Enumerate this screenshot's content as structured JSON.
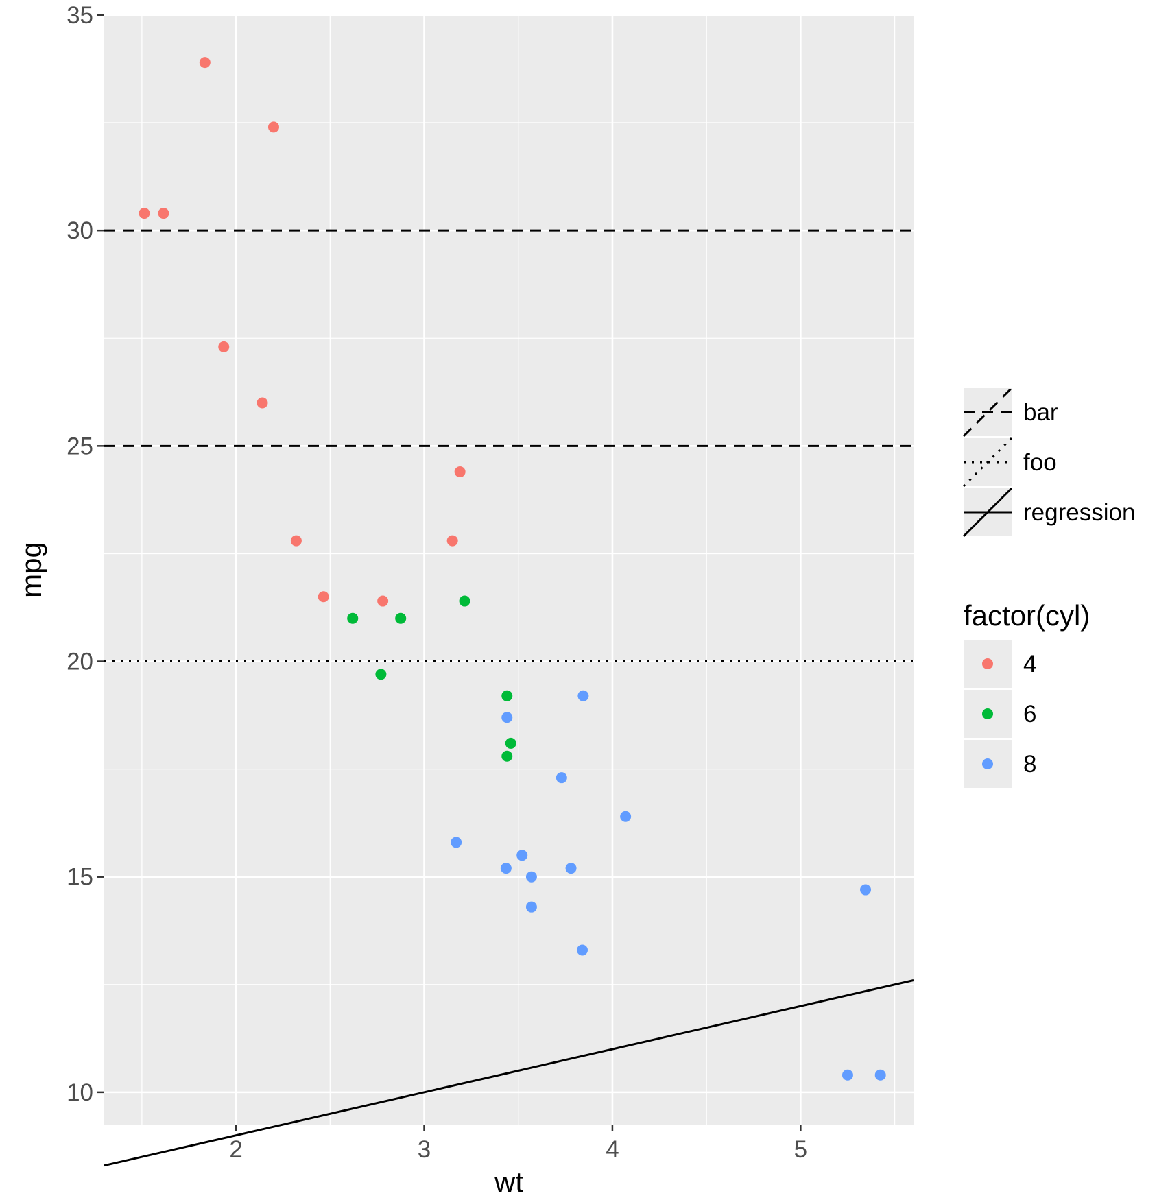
{
  "chart_data": {
    "type": "scatter",
    "xlabel": "wt",
    "ylabel": "mpg",
    "xlim": [
      1.3,
      5.6
    ],
    "ylim": [
      9.25,
      35.0
    ],
    "x_ticks": [
      2,
      3,
      4,
      5
    ],
    "y_ticks": [
      10,
      15,
      20,
      25,
      30,
      35
    ],
    "x_tick_labels": [
      "2",
      "3",
      "4",
      "5"
    ],
    "y_tick_labels": [
      "10",
      "15",
      "20",
      "25",
      "30",
      "35"
    ],
    "grid": true,
    "colors": {
      "panel": "#EBEBEB",
      "grid": "#FFFFFF",
      "cyl4": "#F8766D",
      "cyl6": "#00BA38",
      "cyl8": "#619CFF"
    },
    "series": [
      {
        "name": "4",
        "color": "#F8766D",
        "points": [
          {
            "x": 2.32,
            "y": 22.8
          },
          {
            "x": 3.19,
            "y": 24.4
          },
          {
            "x": 3.15,
            "y": 22.8
          },
          {
            "x": 2.2,
            "y": 32.4
          },
          {
            "x": 1.615,
            "y": 30.4
          },
          {
            "x": 1.835,
            "y": 33.9
          },
          {
            "x": 2.465,
            "y": 21.5
          },
          {
            "x": 1.935,
            "y": 27.3
          },
          {
            "x": 2.14,
            "y": 26.0
          },
          {
            "x": 1.513,
            "y": 30.4
          },
          {
            "x": 2.78,
            "y": 21.4
          }
        ]
      },
      {
        "name": "6",
        "color": "#00BA38",
        "points": [
          {
            "x": 2.62,
            "y": 21.0
          },
          {
            "x": 2.875,
            "y": 21.0
          },
          {
            "x": 3.215,
            "y": 21.4
          },
          {
            "x": 3.44,
            "y": 19.2
          },
          {
            "x": 3.46,
            "y": 18.1
          },
          {
            "x": 3.44,
            "y": 17.8
          },
          {
            "x": 2.77,
            "y": 19.7
          }
        ]
      },
      {
        "name": "8",
        "color": "#619CFF",
        "points": [
          {
            "x": 3.44,
            "y": 18.7
          },
          {
            "x": 3.57,
            "y": 14.3
          },
          {
            "x": 4.07,
            "y": 16.4
          },
          {
            "x": 3.73,
            "y": 17.3
          },
          {
            "x": 3.78,
            "y": 15.2
          },
          {
            "x": 5.25,
            "y": 10.4
          },
          {
            "x": 5.424,
            "y": 10.4
          },
          {
            "x": 5.345,
            "y": 14.7
          },
          {
            "x": 3.52,
            "y": 15.5
          },
          {
            "x": 3.435,
            "y": 15.2
          },
          {
            "x": 3.84,
            "y": 13.3
          },
          {
            "x": 3.845,
            "y": 19.2
          },
          {
            "x": 3.17,
            "y": 15.8
          },
          {
            "x": 3.57,
            "y": 15.0
          }
        ]
      }
    ],
    "hlines": [
      {
        "y": 30,
        "linetype": "dashed",
        "name": "bar"
      },
      {
        "y": 25,
        "linetype": "dashed",
        "name": "bar"
      },
      {
        "y": 20,
        "linetype": "dotted",
        "name": "foo"
      }
    ],
    "ablines": [
      {
        "intercept": 7,
        "slope": 1,
        "linetype": "solid",
        "name": "regression"
      }
    ],
    "legend_lines": [
      {
        "label": "bar",
        "linetype": "dashed"
      },
      {
        "label": "foo",
        "linetype": "dotted"
      },
      {
        "label": "regression",
        "linetype": "solid"
      }
    ],
    "legend_color": {
      "title": "factor(cyl)",
      "entries": [
        {
          "label": "4",
          "color": "#F8766D"
        },
        {
          "label": "6",
          "color": "#00BA38"
        },
        {
          "label": "8",
          "color": "#619CFF"
        }
      ]
    },
    "legend_position": "right"
  }
}
